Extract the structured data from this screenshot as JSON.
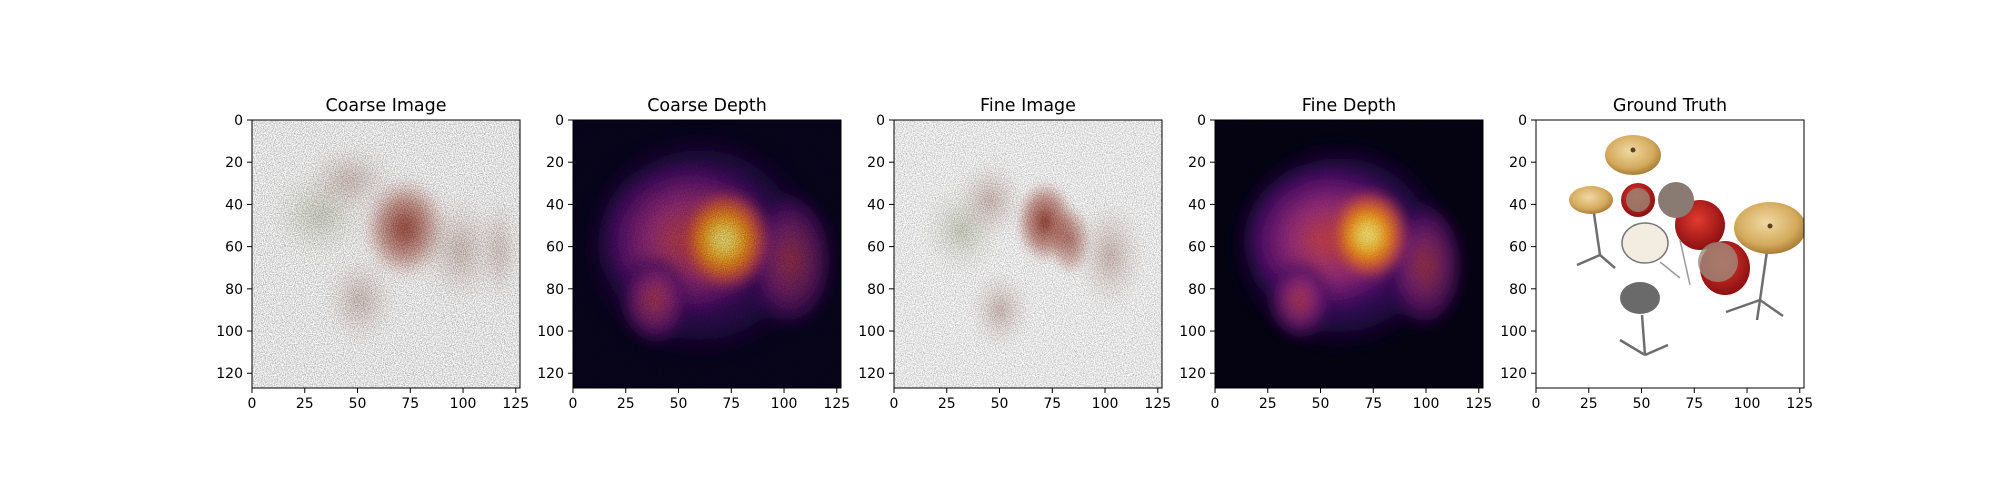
{
  "chart_data": [
    {
      "type": "image",
      "title": "Coarse Image",
      "render": "blurry-rgb",
      "xlim": [
        0,
        127
      ],
      "ylim": [
        127,
        0
      ],
      "x_ticks": [
        0,
        25,
        50,
        75,
        100,
        125
      ],
      "y_ticks": [
        0,
        20,
        40,
        60,
        80,
        100,
        120
      ],
      "tint": "#9a3a2a"
    },
    {
      "type": "heatmap",
      "title": "Coarse Depth",
      "colormap": "inferno",
      "xlim": [
        0,
        127
      ],
      "ylim": [
        127,
        0
      ],
      "x_ticks": [
        0,
        25,
        50,
        75,
        100,
        125
      ],
      "y_ticks": [
        0,
        20,
        40,
        60,
        80,
        100,
        120
      ],
      "noise": "high"
    },
    {
      "type": "image",
      "title": "Fine Image",
      "render": "blurry-rgb",
      "xlim": [
        0,
        127
      ],
      "ylim": [
        127,
        0
      ],
      "x_ticks": [
        0,
        25,
        50,
        75,
        100,
        125
      ],
      "y_ticks": [
        0,
        20,
        40,
        60,
        80,
        100,
        120
      ],
      "tint": "#7a3326"
    },
    {
      "type": "heatmap",
      "title": "Fine Depth",
      "colormap": "inferno",
      "xlim": [
        0,
        127
      ],
      "ylim": [
        127,
        0
      ],
      "x_ticks": [
        0,
        25,
        50,
        75,
        100,
        125
      ],
      "y_ticks": [
        0,
        20,
        40,
        60,
        80,
        100,
        120
      ],
      "noise": "low"
    },
    {
      "type": "image",
      "title": "Ground Truth",
      "render": "drum-kit",
      "xlim": [
        0,
        127
      ],
      "ylim": [
        127,
        0
      ],
      "x_ticks": [
        0,
        25,
        50,
        75,
        100,
        125
      ],
      "y_ticks": [
        0,
        20,
        40,
        60,
        80,
        100,
        120
      ]
    }
  ],
  "colors": {
    "inferno_low": "#000004",
    "inferno_mid": "#bc3754",
    "inferno_high": "#fcffa4",
    "drum_red": "#c41a1a",
    "cymbal_gold": "#d9b46a"
  }
}
